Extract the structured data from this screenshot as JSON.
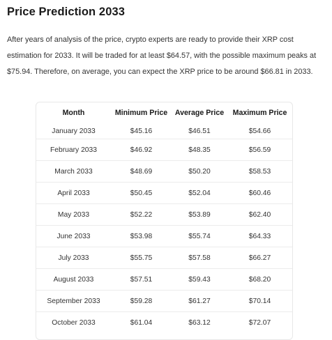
{
  "heading": "Price Prediction 2033",
  "intro": "After years of analysis of the price, crypto experts are ready to provide their XRP cost estimation for 2033. It will be traded for at least $64.57, with the possible maximum peaks at $75.94. Therefore, on average, you can expect the XRP price to be around $66.81 in 2033.",
  "table": {
    "headers": [
      "Month",
      "Minimum Price",
      "Average Price",
      "Maximum Price"
    ],
    "rows": [
      [
        "January 2033",
        "$45.16",
        "$46.51",
        "$54.66"
      ],
      [
        "February 2033",
        "$46.92",
        "$48.35",
        "$56.59"
      ],
      [
        "March 2033",
        "$48.69",
        "$50.20",
        "$58.53"
      ],
      [
        "April 2033",
        "$50.45",
        "$52.04",
        "$60.46"
      ],
      [
        "May 2033",
        "$52.22",
        "$53.89",
        "$62.40"
      ],
      [
        "June 2033",
        "$53.98",
        "$55.74",
        "$64.33"
      ],
      [
        "July 2033",
        "$55.75",
        "$57.58",
        "$66.27"
      ],
      [
        "August 2033",
        "$57.51",
        "$59.43",
        "$68.20"
      ],
      [
        "September 2033",
        "$59.28",
        "$61.27",
        "$70.14"
      ],
      [
        "October 2033",
        "$61.04",
        "$63.12",
        "$72.07"
      ]
    ]
  }
}
